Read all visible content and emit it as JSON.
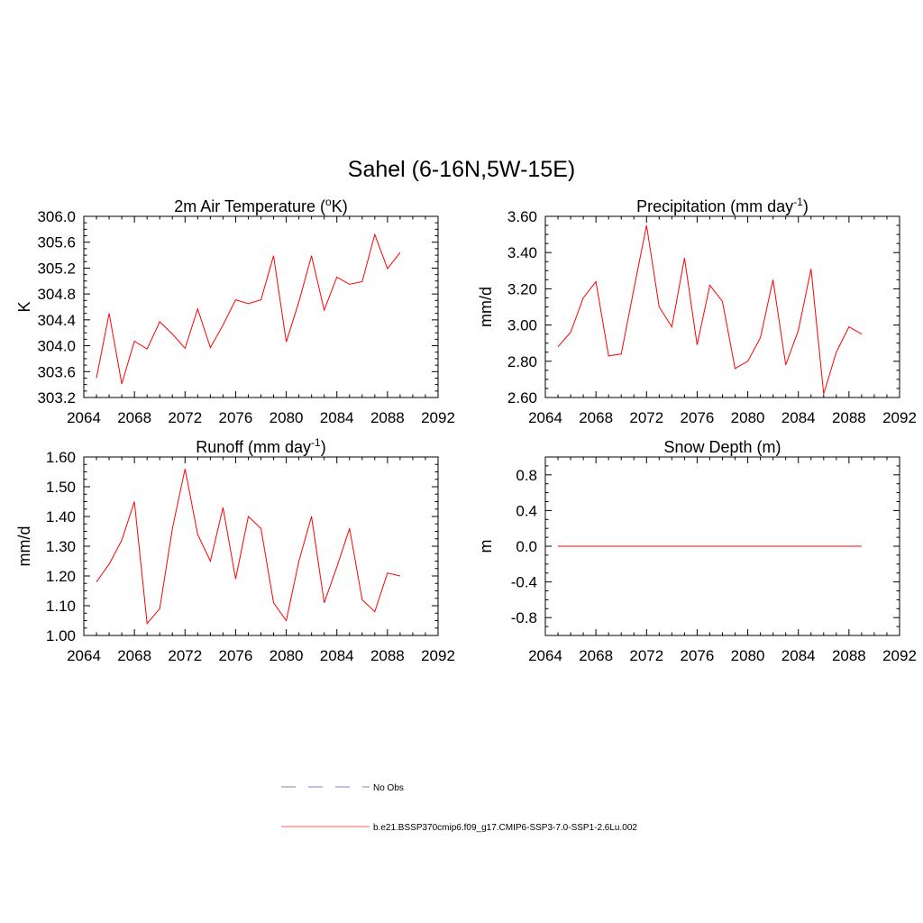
{
  "title": "Sahel (6-16N,5W-15E)",
  "colors": {
    "series": "#ff0000",
    "obs": "#9999dd",
    "axis": "#000000"
  },
  "legend": [
    {
      "label": "No Obs",
      "style": "dashed",
      "color": "#9999dd"
    },
    {
      "label": "b.e21.BSSP370cmip6.f09_g17.CMIP6-SSP3-7.0-SSP1-2.6Lu.002",
      "style": "solid",
      "color": "#ff8080"
    }
  ],
  "chart_data": [
    {
      "type": "line",
      "title": "2m Air Temperature (",
      "title_sup": "o",
      "title_after": "K)",
      "ylabel": "K",
      "xlim": [
        2064,
        2092
      ],
      "ylim": [
        303.2,
        306.0
      ],
      "xticks": [
        "2064",
        "2068",
        "2072",
        "2076",
        "2080",
        "2084",
        "2088",
        "2092"
      ],
      "yticks": [
        "303.2",
        "303.6",
        "304.0",
        "304.4",
        "304.8",
        "305.2",
        "305.6",
        "306.0"
      ],
      "x": [
        2065,
        2066,
        2067,
        2068,
        2069,
        2070,
        2071,
        2072,
        2073,
        2074,
        2075,
        2076,
        2077,
        2078,
        2079,
        2080,
        2081,
        2082,
        2083,
        2084,
        2085,
        2086,
        2087,
        2088,
        2089
      ],
      "series": [
        {
          "values": [
            303.5,
            304.5,
            303.41,
            304.07,
            303.95,
            304.37,
            304.18,
            303.96,
            304.57,
            303.97,
            304.32,
            304.71,
            304.65,
            304.71,
            305.39,
            304.06,
            304.68,
            305.39,
            304.55,
            305.06,
            304.95,
            304.99,
            305.72,
            305.19,
            305.44
          ]
        }
      ]
    },
    {
      "type": "line",
      "title": "Precipitation (mm day",
      "title_sup": "-1",
      "title_after": ")",
      "ylabel": "mm/d",
      "xlim": [
        2064,
        2092
      ],
      "ylim": [
        2.6,
        3.6
      ],
      "xticks": [
        "2064",
        "2068",
        "2072",
        "2076",
        "2080",
        "2084",
        "2088",
        "2092"
      ],
      "yticks": [
        "2.60",
        "2.80",
        "3.00",
        "3.20",
        "3.40",
        "3.60"
      ],
      "x": [
        2065,
        2066,
        2067,
        2068,
        2069,
        2070,
        2071,
        2072,
        2073,
        2074,
        2075,
        2076,
        2077,
        2078,
        2079,
        2080,
        2081,
        2082,
        2083,
        2084,
        2085,
        2086,
        2087,
        2088,
        2089
      ],
      "series": [
        {
          "values": [
            2.88,
            2.96,
            3.15,
            3.24,
            2.83,
            2.84,
            3.2,
            3.55,
            3.1,
            2.99,
            3.37,
            2.89,
            3.22,
            3.13,
            2.76,
            2.8,
            2.93,
            3.25,
            2.78,
            2.97,
            3.31,
            2.62,
            2.85,
            2.99,
            2.95
          ]
        }
      ]
    },
    {
      "type": "line",
      "title": "Runoff (mm day",
      "title_sup": "-1",
      "title_after": ")",
      "ylabel": "mm/d",
      "xlim": [
        2064,
        2092
      ],
      "ylim": [
        1.0,
        1.6
      ],
      "xticks": [
        "2064",
        "2068",
        "2072",
        "2076",
        "2080",
        "2084",
        "2088",
        "2092"
      ],
      "yticks": [
        "1.00",
        "1.10",
        "1.20",
        "1.30",
        "1.40",
        "1.50",
        "1.60"
      ],
      "x": [
        2065,
        2066,
        2067,
        2068,
        2069,
        2070,
        2071,
        2072,
        2073,
        2074,
        2075,
        2076,
        2077,
        2078,
        2079,
        2080,
        2081,
        2082,
        2083,
        2084,
        2085,
        2086,
        2087,
        2088,
        2089
      ],
      "series": [
        {
          "values": [
            1.18,
            1.24,
            1.32,
            1.45,
            1.04,
            1.09,
            1.36,
            1.56,
            1.34,
            1.25,
            1.43,
            1.19,
            1.4,
            1.36,
            1.11,
            1.05,
            1.25,
            1.4,
            1.11,
            1.23,
            1.36,
            1.12,
            1.08,
            1.21,
            1.2
          ]
        }
      ]
    },
    {
      "type": "line",
      "title": "Snow Depth (m)",
      "title_sup": "",
      "title_after": "",
      "ylabel": "m",
      "xlim": [
        2064,
        2092
      ],
      "ylim": [
        -1.0,
        1.0
      ],
      "xticks": [
        "2064",
        "2068",
        "2072",
        "2076",
        "2080",
        "2084",
        "2088",
        "2092"
      ],
      "yticks": [
        "-0.8",
        "-0.4",
        "0.0",
        "0.4",
        "0.8"
      ],
      "ytick_values": [
        -0.8,
        -0.4,
        0.0,
        0.4,
        0.8
      ],
      "x": [
        2065,
        2066,
        2067,
        2068,
        2069,
        2070,
        2071,
        2072,
        2073,
        2074,
        2075,
        2076,
        2077,
        2078,
        2079,
        2080,
        2081,
        2082,
        2083,
        2084,
        2085,
        2086,
        2087,
        2088,
        2089
      ],
      "series": [
        {
          "values": [
            0,
            0,
            0,
            0,
            0,
            0,
            0,
            0,
            0,
            0,
            0,
            0,
            0,
            0,
            0,
            0,
            0,
            0,
            0,
            0,
            0,
            0,
            0,
            0,
            0
          ]
        }
      ]
    }
  ]
}
